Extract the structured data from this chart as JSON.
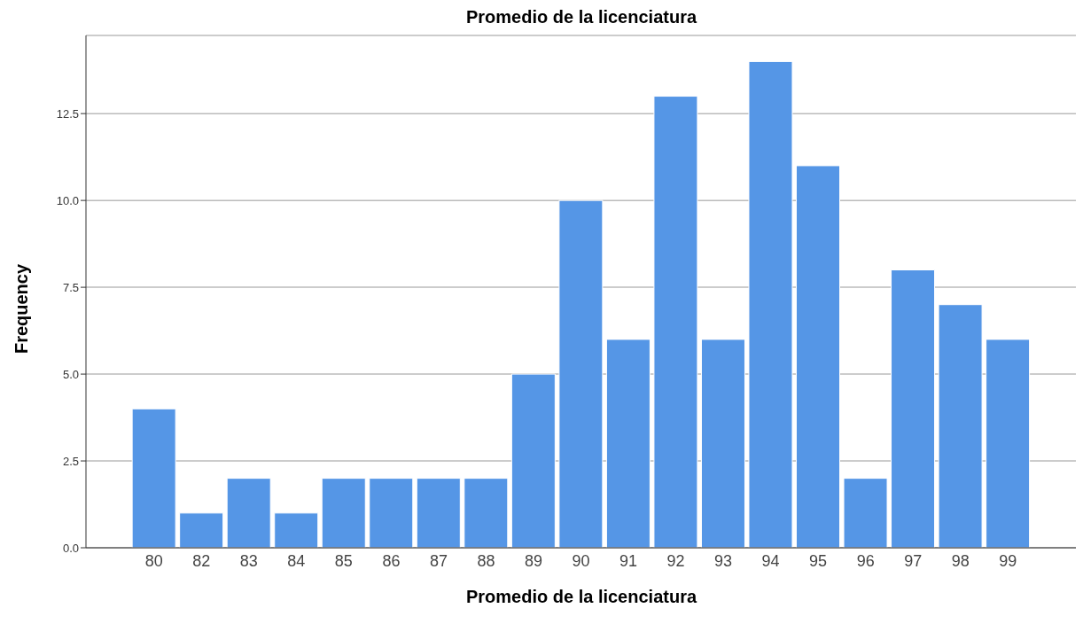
{
  "chart_data": {
    "type": "bar",
    "title": "Promedio de la licenciatura",
    "xlabel": "Promedio de la licenciatura",
    "ylabel": "Frequency",
    "categories": [
      "80",
      "82",
      "83",
      "84",
      "85",
      "86",
      "87",
      "88",
      "89",
      "90",
      "91",
      "92",
      "93",
      "94",
      "95",
      "96",
      "97",
      "98",
      "99"
    ],
    "values": [
      4,
      1,
      2,
      1,
      2,
      2,
      2,
      2,
      5,
      10,
      6,
      13,
      6,
      14,
      11,
      2,
      8,
      7,
      6
    ],
    "color": "#5596e6",
    "ylim": [
      0,
      14.75
    ],
    "yticks": [
      {
        "value": 0,
        "label": "0.0"
      },
      {
        "value": 2.5,
        "label": "2.5"
      },
      {
        "value": 5,
        "label": "5.0"
      },
      {
        "value": 7.5,
        "label": "7.5"
      },
      {
        "value": 10,
        "label": "10.0"
      },
      {
        "value": 12.5,
        "label": "12.5"
      }
    ],
    "grid": "y"
  }
}
